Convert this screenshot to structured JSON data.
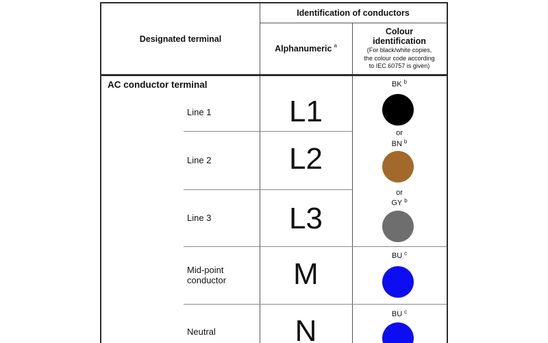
{
  "table": {
    "header": {
      "designated_terminal": "Designated terminal",
      "identification_of_conductors": "Identification of conductors",
      "alphanumeric_label": "Alphanumeric",
      "alphanumeric_footnote": "a",
      "colour_title_line1": "Colour",
      "colour_title_line2": "identification",
      "colour_note_line1": "(For black/white copies,",
      "colour_note_line2": "the colour code according",
      "colour_note_line3": "to IEC 60757 is given)"
    },
    "section_header": "AC conductor terminal",
    "or_separator": "or",
    "rows": [
      {
        "terminal": "Line 1",
        "alphanumeric": "L1",
        "colour_code": "BK",
        "footnote": "b",
        "colour_hex": "#000000"
      },
      {
        "terminal": "Line 2",
        "alphanumeric": "L2",
        "colour_code": "BN",
        "footnote": "b",
        "colour_hex": "#a2692b"
      },
      {
        "terminal": "Line 3",
        "alphanumeric": "L3",
        "colour_code": "GY",
        "footnote": "b",
        "colour_hex": "#6e6e6e"
      },
      {
        "terminal": "Mid-point conductor",
        "alphanumeric": "M",
        "colour_code": "BU",
        "footnote": "c",
        "colour_hex": "#0d0df2"
      },
      {
        "terminal": "Neutral",
        "alphanumeric": "N",
        "colour_code": "BU",
        "footnote": "c",
        "colour_hex": "#0d0df2"
      }
    ]
  }
}
